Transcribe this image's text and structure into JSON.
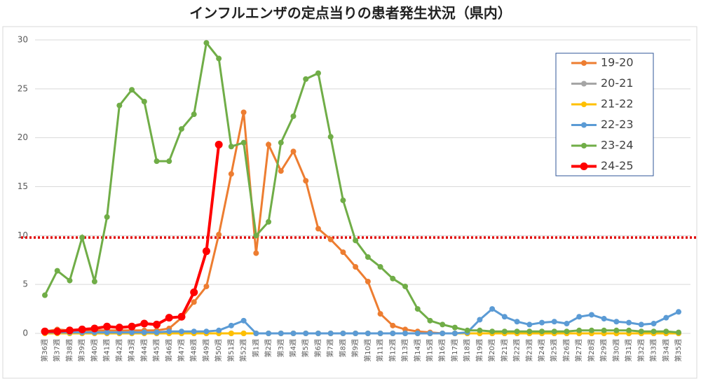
{
  "chart_data": {
    "type": "line",
    "title": "インフルエンザの定点当りの患者発生状況（県内）",
    "categories": [
      "第36週",
      "第37週",
      "第38週",
      "第39週",
      "第40週",
      "第41週",
      "第42週",
      "第43週",
      "第44週",
      "第45週",
      "第46週",
      "第47週",
      "第48週",
      "第49週",
      "第50週",
      "第51週",
      "第52週",
      "第1週",
      "第2週",
      "第3週",
      "第4週",
      "第5週",
      "第6週",
      "第7週",
      "第8週",
      "第9週",
      "第10週",
      "第11週",
      "第12週",
      "第13週",
      "第14週",
      "第15週",
      "第16週",
      "第17週",
      "第18週",
      "第19週",
      "第20週",
      "第21週",
      "第22週",
      "第23週",
      "第24週",
      "第25週",
      "第26週",
      "第27週",
      "第28週",
      "第29週",
      "第30週",
      "第31週",
      "第32週",
      "第33週",
      "第34週",
      "第35週"
    ],
    "series": [
      {
        "name": "19-20",
        "color": "#ed7d31",
        "values": [
          0.2,
          0.4,
          0.3,
          0.3,
          0.3,
          0.3,
          0.3,
          0.3,
          0.3,
          0.3,
          0.5,
          1.6,
          3.2,
          4.8,
          10.1,
          16.3,
          22.6,
          8.2,
          19.3,
          16.6,
          18.6,
          15.6,
          10.7,
          9.6,
          8.3,
          6.8,
          5.3,
          2.0,
          0.8,
          0.4,
          0.2,
          0.1,
          0,
          0,
          0,
          0,
          0,
          0,
          0,
          0,
          0,
          0,
          0,
          0,
          0,
          0,
          0,
          0,
          0,
          0,
          0,
          0
        ]
      },
      {
        "name": "20-21",
        "color": "#a5a5a5",
        "values": [
          0,
          0,
          0,
          0,
          0,
          0,
          0,
          0,
          0,
          0,
          0,
          0,
          0,
          0,
          0,
          0,
          0,
          0,
          0,
          0,
          0,
          0,
          0,
          0,
          0,
          0,
          0,
          0,
          0,
          0,
          0,
          0,
          0,
          0,
          0,
          0,
          0,
          0,
          0,
          0,
          0,
          0,
          0,
          0,
          0,
          0,
          0,
          0,
          0,
          0,
          0,
          0
        ]
      },
      {
        "name": "21-22",
        "color": "#ffc000",
        "values": [
          0,
          0,
          0,
          0,
          0,
          0,
          0,
          0,
          0,
          0,
          0,
          0,
          0,
          0,
          0,
          0,
          0,
          0,
          0,
          0,
          0,
          0,
          0,
          0,
          0,
          0,
          0,
          0,
          0,
          0,
          0,
          0,
          0,
          0,
          0,
          0,
          0,
          0,
          0,
          0,
          0,
          0,
          0,
          0,
          0,
          0,
          0,
          0,
          0,
          0,
          0,
          0
        ]
      },
      {
        "name": "22-23",
        "color": "#5b9bd5",
        "values": [
          0.1,
          0.1,
          0.1,
          0.1,
          0.1,
          0.1,
          0.1,
          0.1,
          0.1,
          0.1,
          0.2,
          0.2,
          0.2,
          0.2,
          0.3,
          0.8,
          1.3,
          0,
          0,
          0,
          0,
          0,
          0,
          0,
          0,
          0,
          0,
          0,
          0,
          0,
          0,
          0,
          0,
          0,
          0.1,
          1.4,
          2.5,
          1.7,
          1.2,
          0.9,
          1.1,
          1.2,
          1.0,
          1.7,
          1.9,
          1.5,
          1.2,
          1.1,
          0.9,
          1.0,
          1.6,
          2.2
        ]
      },
      {
        "name": "23-24",
        "color": "#70ad47",
        "values": [
          3.9,
          6.4,
          5.4,
          9.8,
          5.3,
          11.9,
          23.3,
          24.9,
          23.7,
          17.6,
          17.6,
          20.9,
          22.4,
          29.7,
          28.1,
          19.1,
          19.5,
          10.0,
          11.4,
          19.5,
          22.2,
          26.0,
          26.6,
          20.1,
          13.6,
          9.5,
          7.8,
          6.8,
          5.6,
          4.8,
          2.5,
          1.3,
          0.9,
          0.6,
          0.3,
          0.3,
          0.2,
          0.2,
          0.2,
          0.2,
          0.2,
          0.2,
          0.2,
          0.3,
          0.3,
          0.3,
          0.3,
          0.3,
          0.2,
          0.2,
          0.2,
          0.1
        ]
      },
      {
        "name": "24-25",
        "color": "#ff0000",
        "line_width": 4,
        "values": [
          0.2,
          0.2,
          0.3,
          0.4,
          0.5,
          0.7,
          0.6,
          0.7,
          1.0,
          0.9,
          1.6,
          1.7,
          4.2,
          8.4,
          19.3,
          null,
          null,
          null,
          null,
          null,
          null,
          null,
          null,
          null,
          null,
          null,
          null,
          null,
          null,
          null,
          null,
          null,
          null,
          null,
          null,
          null,
          null,
          null,
          null,
          null,
          null,
          null,
          null,
          null,
          null,
          null,
          null,
          null,
          null,
          null,
          null,
          null
        ]
      }
    ],
    "reference_line": {
      "value": 9.8,
      "color": "#e00000",
      "style": "dotted"
    },
    "ylim": [
      0,
      30
    ],
    "yticks": [
      0,
      5,
      10,
      15,
      20,
      25,
      30
    ],
    "grid": true,
    "legend": "upper right"
  }
}
